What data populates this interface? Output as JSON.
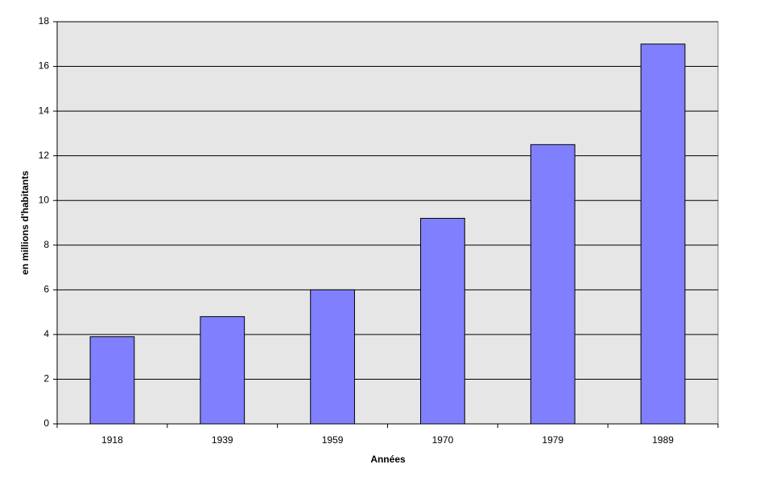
{
  "chart_data": {
    "type": "bar",
    "x_label": "Années",
    "y_label": "en millions d'habitants",
    "categories": [
      "1918",
      "1939",
      "1959",
      "1970",
      "1979",
      "1989"
    ],
    "values": [
      3.9,
      4.8,
      6.0,
      9.2,
      12.5,
      17.0
    ],
    "color": "#8080ff",
    "ylim": [
      0,
      18
    ],
    "yticks": [
      0,
      2,
      4,
      6,
      8,
      10,
      12,
      14,
      16,
      18
    ],
    "grid": true
  }
}
